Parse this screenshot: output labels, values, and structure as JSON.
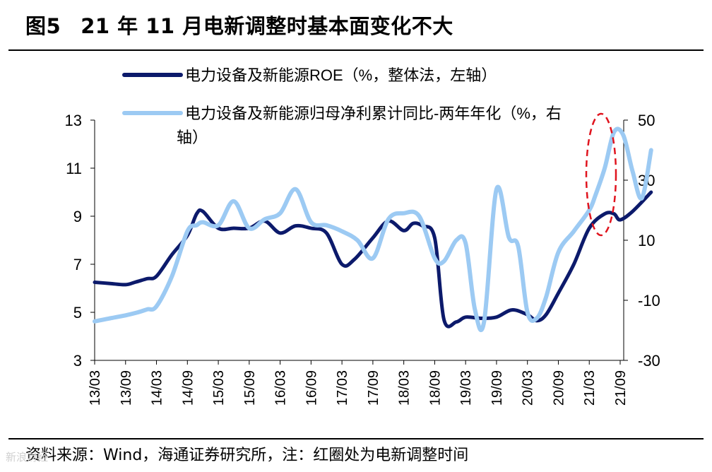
{
  "figure": {
    "label": "图5",
    "title": "21 年 11 月电新调整时基本面变化不大"
  },
  "chart_data": {
    "type": "line",
    "categories": [
      "13/03",
      "13/09",
      "14/03",
      "14/09",
      "15/03",
      "15/09",
      "16/03",
      "16/09",
      "17/03",
      "17/09",
      "18/03",
      "18/09",
      "19/03",
      "19/09",
      "20/03",
      "20/09",
      "21/03",
      "21/09"
    ],
    "y_left": {
      "min": 3,
      "max": 13,
      "ticks": [
        3,
        5,
        7,
        9,
        11,
        13
      ]
    },
    "y_right": {
      "min": -30,
      "max": 50,
      "ticks": [
        -30,
        -10,
        10,
        30,
        50
      ]
    },
    "series": [
      {
        "name": "电力设备及新能源ROE（%，整体法，左轴）",
        "axis": "left",
        "color": "#0c1a6b",
        "x": [
          0,
          0.5,
          1,
          1.3,
          1.7,
          2,
          2.5,
          3,
          3.3,
          3.5,
          4,
          4.5,
          5,
          5.5,
          6,
          6.5,
          7,
          7.5,
          8,
          8.4,
          9,
          9.5,
          10,
          10.3,
          10.6,
          11,
          11.3,
          11.7,
          12,
          12.5,
          13,
          13.5,
          14,
          14.3,
          14.6,
          15,
          15.5,
          16,
          16.5,
          16.8,
          17,
          17.4,
          18
        ],
        "values": [
          6.25,
          6.2,
          6.15,
          6.25,
          6.4,
          6.5,
          7.4,
          8.2,
          9.1,
          9.2,
          8.5,
          8.5,
          8.5,
          8.8,
          8.3,
          8.6,
          8.5,
          8.3,
          7.0,
          7.2,
          8.1,
          8.8,
          8.4,
          8.7,
          8.6,
          8.1,
          4.7,
          4.6,
          4.8,
          4.75,
          4.8,
          5.1,
          4.9,
          4.65,
          4.9,
          5.8,
          7.0,
          8.5,
          9.1,
          9.1,
          8.85,
          9.2,
          10.0
        ]
      },
      {
        "name": "电力设备及新能源归母净利累计同比-两年年化（%，右轴）",
        "axis": "right",
        "color": "#9ccaf3",
        "x": [
          0,
          0.5,
          1,
          1.4,
          1.7,
          2,
          2.5,
          3,
          3.3,
          3.5,
          4,
          4.5,
          5,
          5.5,
          6,
          6.5,
          7,
          7.5,
          8,
          8.5,
          9,
          9.5,
          10,
          10.5,
          11,
          11.3,
          11.7,
          12,
          12.3,
          12.6,
          13,
          13.4,
          13.7,
          14,
          14.3,
          14.6,
          15,
          15.5,
          16,
          16.2,
          16.5,
          16.8,
          17.1,
          17.4,
          17.7,
          18
        ],
        "values": [
          -17,
          -16,
          -15,
          -14,
          -13,
          -12,
          -2,
          13,
          15,
          16,
          15,
          23,
          14,
          17,
          19,
          27,
          16,
          15,
          13,
          10,
          4,
          17,
          19,
          18,
          4,
          3,
          10,
          9,
          -13,
          -17,
          27,
          11,
          8,
          -14,
          -16,
          -9,
          6,
          13,
          20,
          25,
          34,
          46,
          45,
          33,
          24,
          40
        ]
      }
    ],
    "annotation": "red dashed ellipse around 21/03–21/09"
  },
  "legend": [
    {
      "label": "电力设备及新能源ROE（%，整体法，左轴）",
      "color": "#0c1a6b"
    },
    {
      "label_line1": "电力设备及新能源归母净利累计同比-两年年化（%，右",
      "label_line2": "轴）",
      "color": "#9ccaf3"
    }
  ],
  "source": "资料来源：Wind，海通证券研究所，注：红圈处为电新调整时间",
  "watermark": "新浪财经"
}
